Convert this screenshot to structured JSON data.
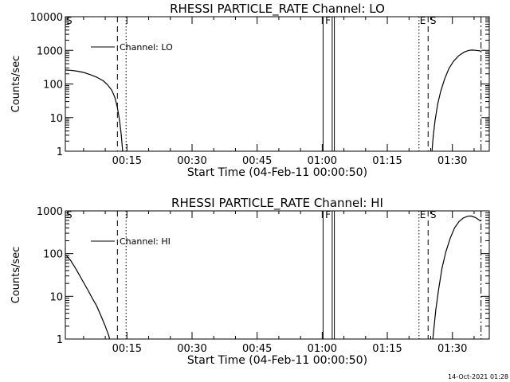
{
  "footer_timestamp": "14-Oct-2021 01:28",
  "chart_data": [
    {
      "type": "line",
      "title": "RHESSI PARTICLE_RATE Channel: LO",
      "xlabel": "Start Time (04-Feb-11 00:00:50)",
      "ylabel": "Counts/sec",
      "yscale": "log",
      "xlim": [
        0.8,
        98.5
      ],
      "ylim": [
        1,
        10000
      ],
      "xticks": [
        15,
        30,
        45,
        60,
        75,
        90
      ],
      "xtick_labels": [
        "00:15",
        "00:30",
        "00:45",
        "01:00",
        "01:15",
        "01:30"
      ],
      "yticks": [
        1,
        10,
        100,
        1000,
        10000
      ],
      "ytick_labels": [
        "1",
        "10",
        "100",
        "1000",
        "10000"
      ],
      "legend": "top-left",
      "series": [
        {
          "name": "Channel: LO",
          "segments": [
            [
              [
                0.8,
                260
              ],
              [
                2,
                255
              ],
              [
                3.5,
                240
              ],
              [
                5,
                220
              ],
              [
                6.5,
                190
              ],
              [
                8,
                160
              ],
              [
                9.5,
                125
              ],
              [
                10.5,
                95
              ],
              [
                11.5,
                65
              ],
              [
                12.2,
                40
              ],
              [
                12.8,
                20
              ],
              [
                13.3,
                8
              ],
              [
                13.7,
                3
              ],
              [
                14,
                1
              ]
            ],
            [
              [
                85.3,
                1
              ],
              [
                85.6,
                3
              ],
              [
                86,
                8
              ],
              [
                86.6,
                25
              ],
              [
                87.3,
                60
              ],
              [
                88.2,
                140
              ],
              [
                89.2,
                290
              ],
              [
                90.3,
                480
              ],
              [
                91.5,
                700
              ],
              [
                92.8,
                900
              ],
              [
                93.8,
                1000
              ],
              [
                94.5,
                1020
              ],
              [
                95.5,
                1000
              ],
              [
                96.5,
                960
              ]
            ]
          ]
        }
      ],
      "annotations": [
        {
          "label": "S",
          "x": 0.8
        },
        {
          "label": "F",
          "x": 60.5
        },
        {
          "label": "E",
          "x": 82.3
        },
        {
          "label": "S",
          "x": 84.7
        }
      ],
      "vlines": [
        {
          "x": 12.8,
          "style": "dashed"
        },
        {
          "x": 14.8,
          "style": "dotted"
        },
        {
          "x": 60.2,
          "style": "solid"
        },
        {
          "x": 62.3,
          "style": "solid"
        },
        {
          "x": 62.8,
          "style": "solid"
        },
        {
          "x": 82.3,
          "style": "dotted"
        },
        {
          "x": 84.4,
          "style": "dashed"
        },
        {
          "x": 96.6,
          "style": "dashdot"
        }
      ]
    },
    {
      "type": "line",
      "title": "RHESSI PARTICLE_RATE Channel: HI",
      "xlabel": "Start Time (04-Feb-11 00:00:50)",
      "ylabel": "Counts/sec",
      "yscale": "log",
      "xlim": [
        0.8,
        98.5
      ],
      "ylim": [
        1,
        1000
      ],
      "xticks": [
        15,
        30,
        45,
        60,
        75,
        90
      ],
      "xtick_labels": [
        "00:15",
        "00:30",
        "00:45",
        "01:00",
        "01:15",
        "01:30"
      ],
      "yticks": [
        1,
        10,
        100,
        1000
      ],
      "ytick_labels": [
        "1",
        "10",
        "100",
        "1000"
      ],
      "legend": "top-left",
      "series": [
        {
          "name": "Channel: HI",
          "segments": [
            [
              [
                0.8,
                95
              ],
              [
                2,
                70
              ],
              [
                3,
                48
              ],
              [
                4,
                32
              ],
              [
                5,
                21
              ],
              [
                6,
                14
              ],
              [
                7,
                9
              ],
              [
                8,
                6
              ],
              [
                9,
                3.5
              ],
              [
                10,
                2
              ],
              [
                10.8,
                1.2
              ],
              [
                11,
                1
              ]
            ],
            [
              [
                85.5,
                1
              ],
              [
                85.8,
                2
              ],
              [
                86.2,
                5
              ],
              [
                86.8,
                14
              ],
              [
                87.6,
                45
              ],
              [
                88.5,
                110
              ],
              [
                89.5,
                230
              ],
              [
                90.5,
                400
              ],
              [
                91.5,
                560
              ],
              [
                92.5,
                680
              ],
              [
                93.5,
                750
              ],
              [
                94.3,
                760
              ],
              [
                95.3,
                700
              ],
              [
                96.5,
                580
              ]
            ]
          ]
        }
      ],
      "annotations": [
        {
          "label": "S",
          "x": 0.8
        },
        {
          "label": "F",
          "x": 60.5
        },
        {
          "label": "E",
          "x": 82.3
        },
        {
          "label": "S",
          "x": 84.7
        }
      ],
      "vlines": [
        {
          "x": 12.8,
          "style": "dashed"
        },
        {
          "x": 14.8,
          "style": "dotted"
        },
        {
          "x": 60.2,
          "style": "solid"
        },
        {
          "x": 62.3,
          "style": "solid"
        },
        {
          "x": 62.8,
          "style": "solid"
        },
        {
          "x": 82.3,
          "style": "dotted"
        },
        {
          "x": 84.4,
          "style": "dashed"
        },
        {
          "x": 96.6,
          "style": "dashdot"
        }
      ]
    }
  ]
}
